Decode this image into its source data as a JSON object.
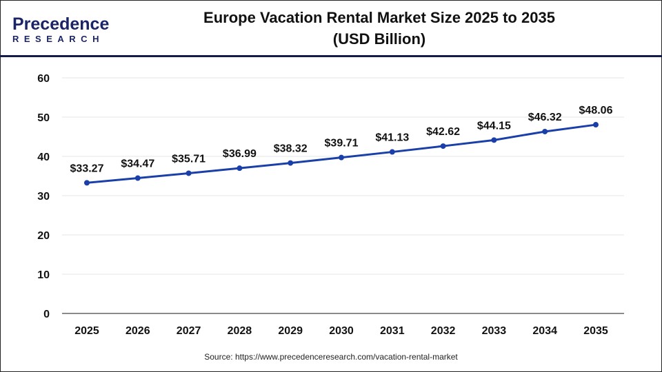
{
  "logo": {
    "top": "Precedence",
    "bottom": "RESEARCH"
  },
  "source": "Source: https://www.precedenceresearch.com/vacation-rental-market",
  "colors": {
    "line": "#1a3fa8",
    "header_rule": "#141a4a"
  },
  "chart_data": {
    "type": "line",
    "title": "Europe Vacation Rental Market Size 2025 to 2035",
    "subtitle": "(USD Billion)",
    "categories": [
      "2025",
      "2026",
      "2027",
      "2028",
      "2029",
      "2030",
      "2031",
      "2032",
      "2033",
      "2034",
      "2035"
    ],
    "values": [
      33.27,
      34.47,
      35.71,
      36.99,
      38.32,
      39.71,
      41.13,
      42.62,
      44.15,
      46.32,
      48.06
    ],
    "labels": [
      "$33.27",
      "$34.47",
      "$35.71",
      "$36.99",
      "$38.32",
      "$39.71",
      "$41.13",
      "$42.62",
      "$44.15",
      "$46.32",
      "$48.06"
    ],
    "yticks": [
      0,
      10,
      20,
      30,
      40,
      50,
      60
    ],
    "ylim": [
      0,
      60
    ],
    "xlabel": "",
    "ylabel": "",
    "grid": true,
    "legend": "none"
  }
}
